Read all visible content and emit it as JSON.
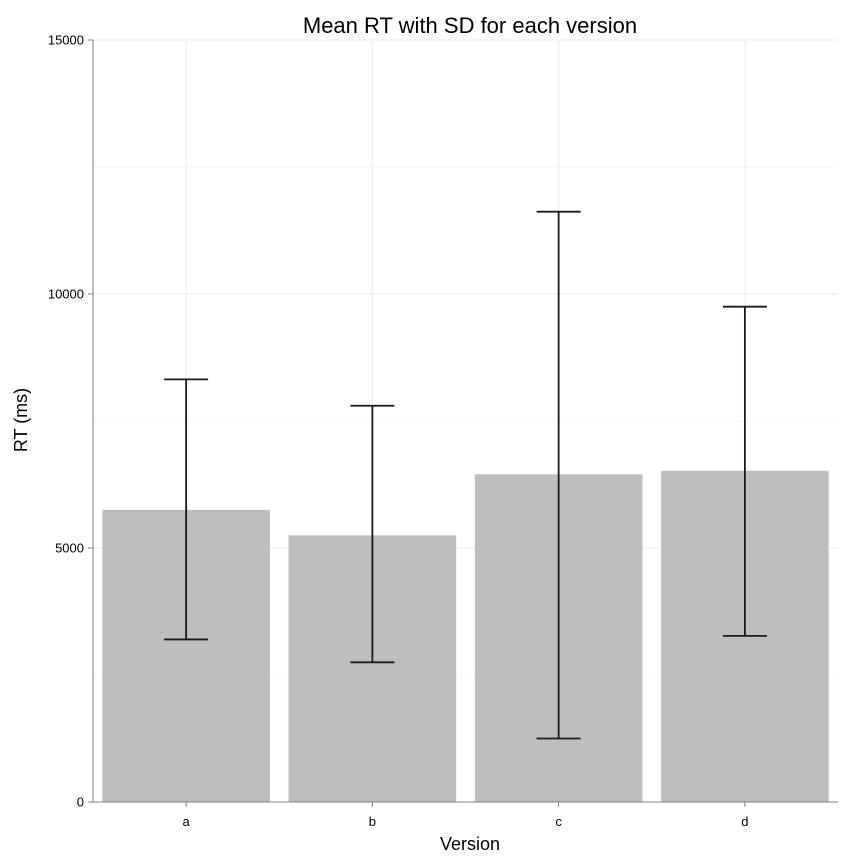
{
  "chart_data": {
    "type": "bar",
    "title": "Mean RT with SD for each version",
    "xlabel": "Version",
    "ylabel": "RT (ms)",
    "categories": [
      "a",
      "b",
      "c",
      "d"
    ],
    "values": [
      5750,
      5250,
      6450,
      6520
    ],
    "error_low": [
      3200,
      2750,
      1250,
      3270
    ],
    "error_high": [
      8320,
      7800,
      11620,
      9750
    ],
    "ylim": [
      0,
      15000
    ],
    "yticks": [
      0,
      5000,
      10000,
      15000
    ],
    "ytick_labels": [
      "0",
      "5000",
      "10000",
      "15000"
    ],
    "grid": true,
    "colors": {
      "bar": "#bebebe",
      "error_bar": "#1a1a1a",
      "grid_major": "#ebebeb",
      "grid_minor": "#f5f5f5",
      "axis": "#7f7f7f",
      "text": "#000000"
    }
  }
}
